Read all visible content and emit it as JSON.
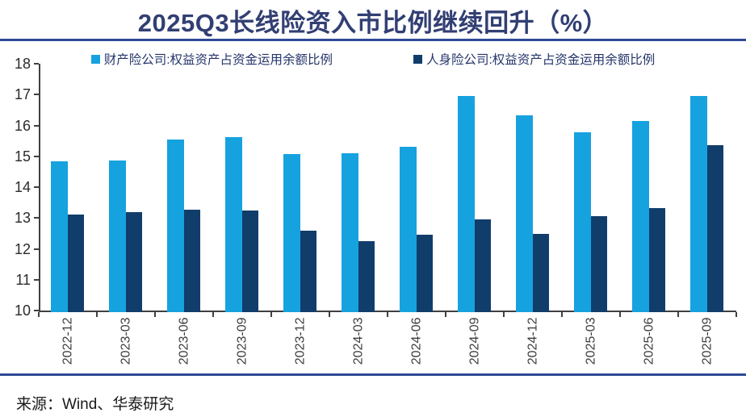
{
  "title": "2025Q3长线险资入市比例继续回升（%）",
  "source": "来源：Wind、华泰研究",
  "colors": {
    "title_text": "#323F73",
    "accent_rule": "#2E4A96",
    "axis_text": "#3d3d3d",
    "series1": "#16A2DF",
    "series2": "#113D6B"
  },
  "chart_data": {
    "type": "bar",
    "title": "2025Q3长线险资入市比例继续回升（%）",
    "categories": [
      "2022-12",
      "2023-03",
      "2023-06",
      "2023-09",
      "2023-12",
      "2024-03",
      "2024-06",
      "2024-09",
      "2024-12",
      "2025-03",
      "2025-06",
      "2025-09"
    ],
    "series": [
      {
        "name": "财产险公司:权益资产占资金运用余额比例",
        "color": "#16A2DF",
        "values": [
          14.83,
          14.87,
          15.55,
          15.63,
          15.08,
          15.1,
          15.3,
          16.95,
          16.33,
          15.79,
          16.15,
          16.95
        ]
      },
      {
        "name": "人身险公司:权益资产占资金运用余额比例",
        "color": "#113D6B",
        "values": [
          13.12,
          13.18,
          13.28,
          13.24,
          12.58,
          12.24,
          12.46,
          12.95,
          12.48,
          13.06,
          13.32,
          15.35
        ]
      }
    ],
    "ylim": [
      10,
      18
    ],
    "ytick_step": 1,
    "grid": false,
    "legend_position": "top"
  }
}
